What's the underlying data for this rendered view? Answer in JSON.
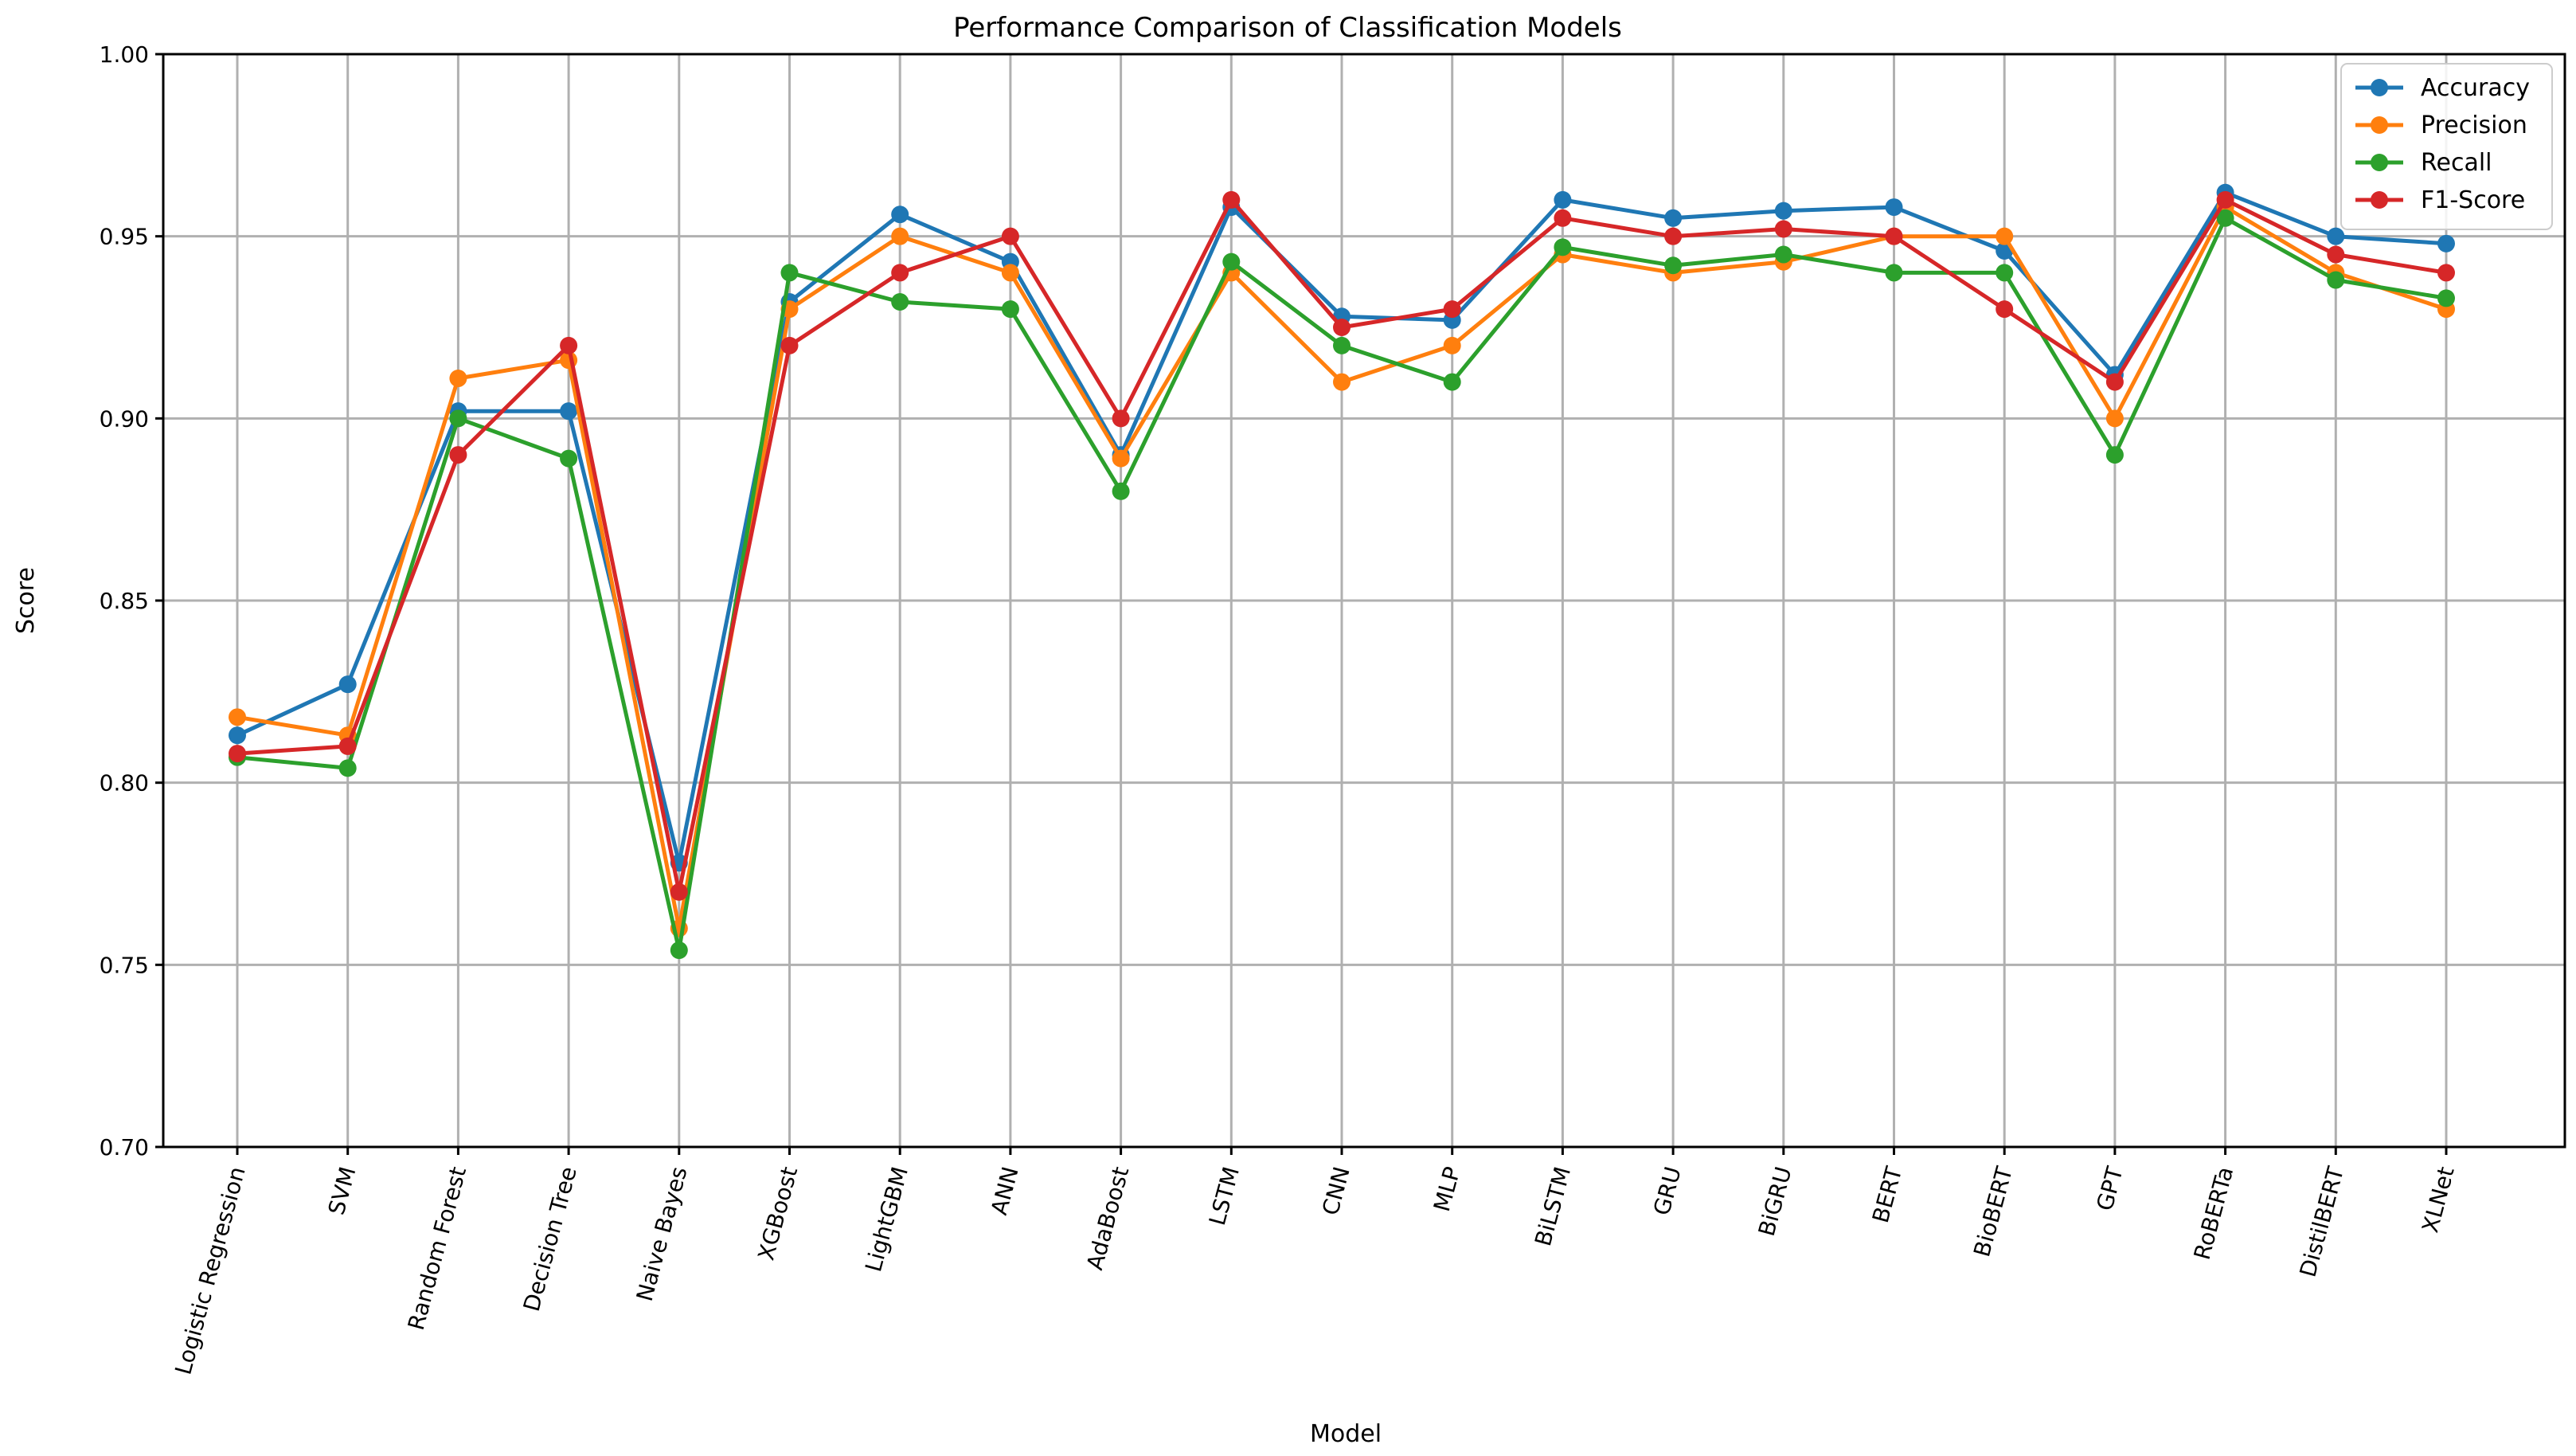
{
  "chart_data": {
    "type": "line",
    "title": "Performance Comparison of Classification Models",
    "xlabel": "Model",
    "ylabel": "Score",
    "ylim": [
      0.7,
      1.0
    ],
    "yticks": [
      "0.70",
      "0.75",
      "0.80",
      "0.85",
      "0.90",
      "0.95",
      "1.00"
    ],
    "grid": true,
    "legend_position": "top-right",
    "categories": [
      "Logistic Regression",
      "SVM",
      "Random Forest",
      "Decision Tree",
      "Naive Bayes",
      "XGBoost",
      "LightGBM",
      "ANN",
      "AdaBoost",
      "LSTM",
      "CNN",
      "MLP",
      "BiLSTM",
      "GRU",
      "BiGRU",
      "BERT",
      "BioBERT",
      "GPT",
      "RoBERTa",
      "DistilBERT",
      "XLNet"
    ],
    "series": [
      {
        "name": "Accuracy",
        "color": "#1f77b4",
        "values": [
          0.813,
          0.827,
          0.902,
          0.902,
          0.778,
          0.932,
          0.956,
          0.943,
          0.89,
          0.958,
          0.928,
          0.927,
          0.96,
          0.955,
          0.957,
          0.958,
          0.946,
          0.912,
          0.962,
          0.95,
          0.948
        ]
      },
      {
        "name": "Precision",
        "color": "#ff7f0e",
        "values": [
          0.818,
          0.813,
          0.911,
          0.916,
          0.76,
          0.93,
          0.95,
          0.94,
          0.889,
          0.94,
          0.91,
          0.92,
          0.945,
          0.94,
          0.943,
          0.95,
          0.95,
          0.9,
          0.958,
          0.94,
          0.93
        ]
      },
      {
        "name": "Recall",
        "color": "#2ca02c",
        "values": [
          0.807,
          0.804,
          0.9,
          0.889,
          0.754,
          0.94,
          0.932,
          0.93,
          0.88,
          0.943,
          0.92,
          0.91,
          0.947,
          0.942,
          0.945,
          0.94,
          0.94,
          0.89,
          0.955,
          0.938,
          0.933
        ]
      },
      {
        "name": "F1-Score",
        "color": "#d62728",
        "values": [
          0.808,
          0.81,
          0.89,
          0.92,
          0.77,
          0.92,
          0.94,
          0.95,
          0.9,
          0.96,
          0.925,
          0.93,
          0.955,
          0.95,
          0.952,
          0.95,
          0.93,
          0.91,
          0.96,
          0.945,
          0.94
        ]
      }
    ]
  }
}
